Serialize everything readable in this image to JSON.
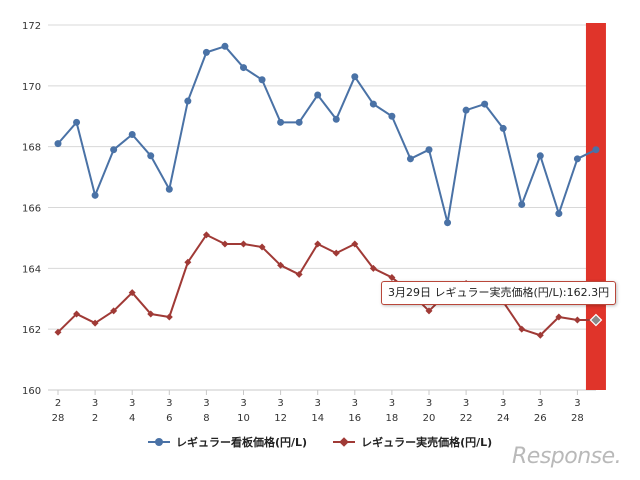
{
  "chart_data": {
    "type": "line",
    "x": [
      {
        "m": "2",
        "d": "28"
      },
      {
        "m": "3",
        "d": "1"
      },
      {
        "m": "3",
        "d": "2"
      },
      {
        "m": "3",
        "d": "3"
      },
      {
        "m": "3",
        "d": "4"
      },
      {
        "m": "3",
        "d": "5"
      },
      {
        "m": "3",
        "d": "6"
      },
      {
        "m": "3",
        "d": "7"
      },
      {
        "m": "3",
        "d": "8"
      },
      {
        "m": "3",
        "d": "9"
      },
      {
        "m": "3",
        "d": "10"
      },
      {
        "m": "3",
        "d": "11"
      },
      {
        "m": "3",
        "d": "12"
      },
      {
        "m": "3",
        "d": "13"
      },
      {
        "m": "3",
        "d": "14"
      },
      {
        "m": "3",
        "d": "15"
      },
      {
        "m": "3",
        "d": "16"
      },
      {
        "m": "3",
        "d": "17"
      },
      {
        "m": "3",
        "d": "18"
      },
      {
        "m": "3",
        "d": "19"
      },
      {
        "m": "3",
        "d": "20"
      },
      {
        "m": "3",
        "d": "21"
      },
      {
        "m": "3",
        "d": "22"
      },
      {
        "m": "3",
        "d": "23"
      },
      {
        "m": "3",
        "d": "24"
      },
      {
        "m": "3",
        "d": "25"
      },
      {
        "m": "3",
        "d": "26"
      },
      {
        "m": "3",
        "d": "27"
      },
      {
        "m": "3",
        "d": "28"
      },
      {
        "m": "3",
        "d": "29"
      }
    ],
    "series": [
      {
        "name": "レギュラー看板価格(円/L)",
        "color": "#4a72a6",
        "marker": "circle",
        "values": [
          168.1,
          168.8,
          166.4,
          167.9,
          168.4,
          167.7,
          166.6,
          169.5,
          171.1,
          171.3,
          170.6,
          170.2,
          168.8,
          168.8,
          169.7,
          168.9,
          170.3,
          169.4,
          169.0,
          167.6,
          167.9,
          165.5,
          169.2,
          169.4,
          168.6,
          166.1,
          167.7,
          165.8,
          167.6,
          167.9
        ]
      },
      {
        "name": "レギュラー実売価格(円/L)",
        "color": "#a03a36",
        "marker": "diamond",
        "values": [
          161.9,
          162.5,
          162.2,
          162.6,
          163.2,
          162.5,
          162.4,
          164.2,
          165.1,
          164.8,
          164.8,
          164.7,
          164.1,
          163.8,
          164.8,
          164.5,
          164.8,
          164.0,
          163.7,
          163.2,
          162.6,
          163.2,
          163.5,
          163.3,
          162.9,
          162.0,
          161.8,
          162.4,
          162.3,
          162.3
        ]
      }
    ],
    "ylim": [
      160,
      172
    ],
    "yticks": [
      160,
      162,
      164,
      166,
      168,
      170,
      172
    ],
    "x_tick_every": 2,
    "grid": true,
    "legend": "bottom",
    "highlight": {
      "index": 29,
      "color": "#e0342a"
    },
    "tooltip": "3月29日 レギュラー実売価格(円/L):162.3円"
  },
  "watermark": "Response."
}
